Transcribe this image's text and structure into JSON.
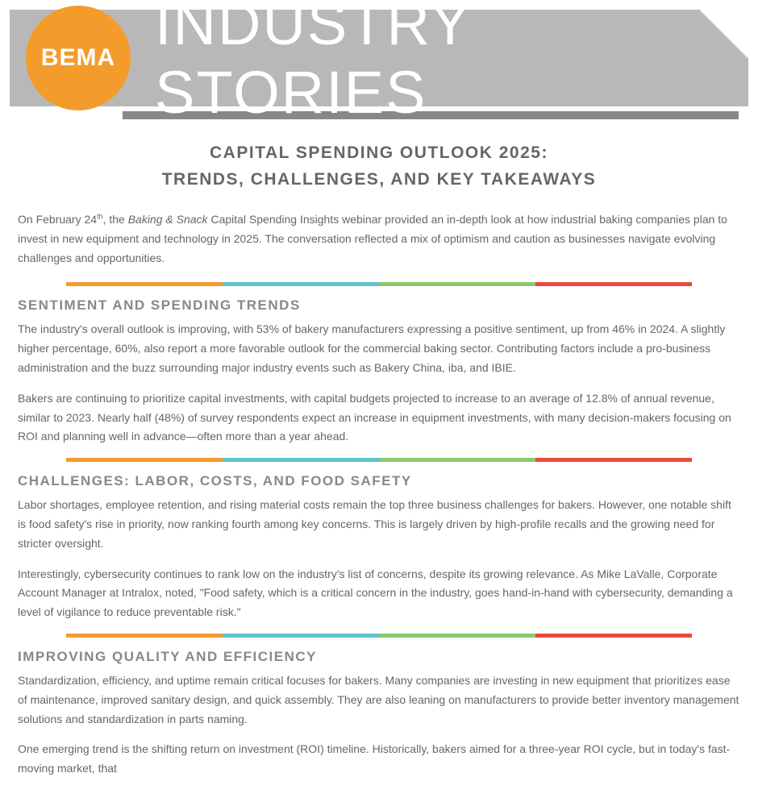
{
  "header": {
    "logo_text": "BEMA",
    "banner_title": "INDUSTRY STORIES",
    "logo_bg": "#f39c2c",
    "banner_bg": "#b8b8b8",
    "underbar_bg": "#888888"
  },
  "divider_colors": [
    "#f39c2c",
    "#5fc4cf",
    "#8bc96f",
    "#e94b3c"
  ],
  "article": {
    "title_line1": "CAPITAL SPENDING OUTLOOK 2025:",
    "title_line2": "TRENDS, CHALLENGES, AND KEY TAKEAWAYS",
    "intro_html": "On February 24<sup>th</sup>, the <em>Baking & Snack</em> Capital Spending Insights webinar provided an in-depth look at how industrial baking companies plan to invest in new equipment and technology in 2025. The conversation reflected a mix of optimism and caution as businesses navigate evolving challenges and opportunities.",
    "sections": [
      {
        "heading": "SENTIMENT AND SPENDING TRENDS",
        "paragraphs": [
          "The industry's overall outlook is improving, with 53% of bakery manufacturers expressing a positive sentiment, up from 46% in 2024. A slightly higher percentage, 60%, also report a more favorable outlook for the commercial baking sector. Contributing factors include a pro-business administration and the buzz surrounding major industry events such as Bakery China, iba, and IBIE.",
          "Bakers are continuing to prioritize capital investments, with capital budgets projected to increase to an average of 12.8% of annual revenue, similar to 2023. Nearly half (48%) of survey respondents expect an increase in equipment investments, with many decision-makers focusing on ROI and planning well in advance—often more than a year ahead."
        ]
      },
      {
        "heading": "CHALLENGES: LABOR, COSTS, AND FOOD SAFETY",
        "paragraphs": [
          "Labor shortages, employee retention, and rising material costs remain the top three business challenges for bakers. However, one notable shift is food safety's rise in priority, now ranking fourth among key concerns. This is largely driven by high-profile recalls and the growing need for stricter oversight.",
          "Interestingly, cybersecurity continues to rank low on the industry's list of concerns, despite its growing relevance. As Mike LaValle, Corporate Account Manager at Intralox, noted, \"Food safety, which is a critical concern in the industry, goes hand-in-hand with cybersecurity, demanding a level of vigilance to reduce preventable risk.\""
        ]
      },
      {
        "heading": "IMPROVING QUALITY AND EFFICIENCY",
        "paragraphs": [
          "Standardization, efficiency, and uptime remain critical focuses for bakers. Many companies are investing in new equipment that prioritizes ease of maintenance, improved sanitary design, and quick assembly. They are also leaning on manufacturers to provide better inventory management solutions and standardization in parts naming.",
          "One emerging trend is the shifting return on investment (ROI) timeline. Historically, bakers aimed for a three-year ROI cycle, but in today's fast-moving market, that"
        ]
      }
    ]
  }
}
